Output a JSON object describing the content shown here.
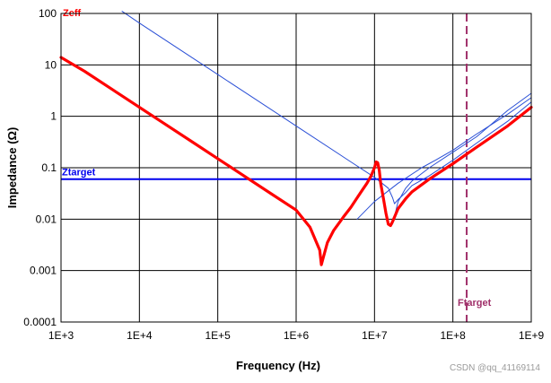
{
  "chart_data": {
    "type": "line",
    "title": "",
    "xlabel": "Frequency (Hz)",
    "ylabel": "Impedance (Ω)",
    "x_scale": "log",
    "y_scale": "log",
    "xlim": [
      1000,
      1000000000
    ],
    "ylim": [
      0.0001,
      100
    ],
    "grid": true,
    "x_ticks": [
      1000,
      10000,
      100000,
      1000000,
      10000000,
      100000000,
      1000000000
    ],
    "x_tick_labels": [
      "1E+3",
      "1E+4",
      "1E+5",
      "1E+6",
      "1E+7",
      "1E+8",
      "1E+9"
    ],
    "y_ticks": [
      0.0001,
      0.001,
      0.01,
      0.1,
      1,
      10,
      100
    ],
    "y_tick_labels": [
      "0.0001",
      "0.001",
      "0.01",
      "0.1",
      "1",
      "10",
      "100"
    ],
    "series": [
      {
        "name": "Zeff",
        "color": "#ff0000",
        "style": "thick",
        "x": [
          1000,
          2000,
          5000,
          10000,
          20000,
          50000,
          100000,
          200000,
          500000,
          1000000,
          1500000,
          2000000,
          2100000,
          2200000,
          2500000,
          3000000,
          4000000,
          5000000,
          6000000,
          7000000,
          8000000,
          9000000,
          10000000,
          10500000,
          11000000,
          11500000,
          12000000,
          13000000,
          14000000,
          15000000,
          16000000,
          17000000,
          20000000,
          25000000,
          30000000,
          50000000,
          100000000,
          200000000,
          500000000,
          1000000000
        ],
        "y": [
          14,
          7.5,
          3,
          1.5,
          0.75,
          0.3,
          0.15,
          0.075,
          0.03,
          0.015,
          0.007,
          0.0025,
          0.0013,
          0.0017,
          0.0035,
          0.006,
          0.011,
          0.017,
          0.026,
          0.037,
          0.05,
          0.068,
          0.1,
          0.13,
          0.125,
          0.09,
          0.05,
          0.025,
          0.013,
          0.008,
          0.0075,
          0.009,
          0.016,
          0.025,
          0.034,
          0.06,
          0.12,
          0.25,
          0.65,
          1.5
        ]
      },
      {
        "name": "",
        "color": "#2a4fd6",
        "style": "thin",
        "x": [
          6000000,
          10000000,
          20000000,
          40000000,
          60000000,
          100000000,
          200000000,
          500000000,
          1000000000
        ],
        "y": [
          0.01,
          0.022,
          0.05,
          0.1,
          0.14,
          0.22,
          0.45,
          1.1,
          2.3
        ]
      },
      {
        "name": "",
        "color": "#2a4fd6",
        "style": "thin",
        "x": [
          6000,
          10000,
          100000,
          1000000,
          5000000,
          10000000,
          15000000,
          17000000,
          18000000,
          20000000,
          25000000,
          30000000,
          50000000,
          100000000,
          200000000,
          500000000,
          1000000000
        ],
        "y": [
          110,
          65,
          6.5,
          0.65,
          0.13,
          0.065,
          0.04,
          0.026,
          0.02,
          0.024,
          0.033,
          0.045,
          0.07,
          0.14,
          0.3,
          0.8,
          1.9
        ]
      },
      {
        "name": "",
        "color": "#2a4fd6",
        "style": "thin",
        "x": [
          17000000,
          20000000,
          25000000,
          30000000,
          50000000,
          100000000,
          200000000,
          500000000,
          1000000000
        ],
        "y": [
          0.008,
          0.022,
          0.04,
          0.055,
          0.1,
          0.2,
          0.4,
          1.3,
          2.8
        ]
      }
    ],
    "reference_lines": [
      {
        "label": "Ztarget",
        "orientation": "horizontal",
        "value": 0.06,
        "color": "#0000ee"
      },
      {
        "label": "Ftarget",
        "orientation": "vertical",
        "value": 150000000,
        "color": "#a0306a",
        "dashed": true
      }
    ],
    "annotations": [
      {
        "text": "Zeff",
        "color": "#ff0000"
      }
    ]
  },
  "watermark": "CSDN @qq_41169114"
}
